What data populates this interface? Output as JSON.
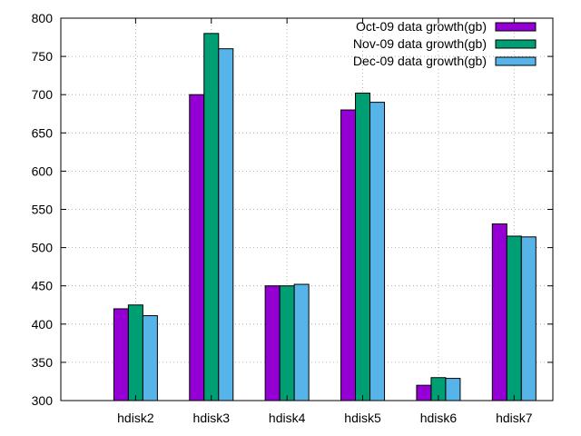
{
  "chart_data": {
    "type": "bar",
    "title": "",
    "xlabel": "",
    "ylabel": "",
    "categories": [
      "hdisk2",
      "hdisk3",
      "hdisk4",
      "hdisk5",
      "hdisk6",
      "hdisk7"
    ],
    "series": [
      {
        "name": "Oct-09 data growth(gb)",
        "color": "#9400d3",
        "values": [
          420,
          700,
          450,
          680,
          320,
          531
        ]
      },
      {
        "name": "Nov-09 data growth(gb)",
        "color": "#009e73",
        "values": [
          425,
          780,
          450,
          702,
          330,
          515
        ]
      },
      {
        "name": "Dec-09 data growth(gb)",
        "color": "#56b4e9",
        "values": [
          411,
          760,
          452,
          690,
          329,
          514
        ]
      }
    ],
    "ylim": [
      300,
      800
    ],
    "yticks": [
      300,
      350,
      400,
      450,
      500,
      550,
      600,
      650,
      700,
      750,
      800
    ],
    "grid": true,
    "legend_position": "top-right"
  }
}
